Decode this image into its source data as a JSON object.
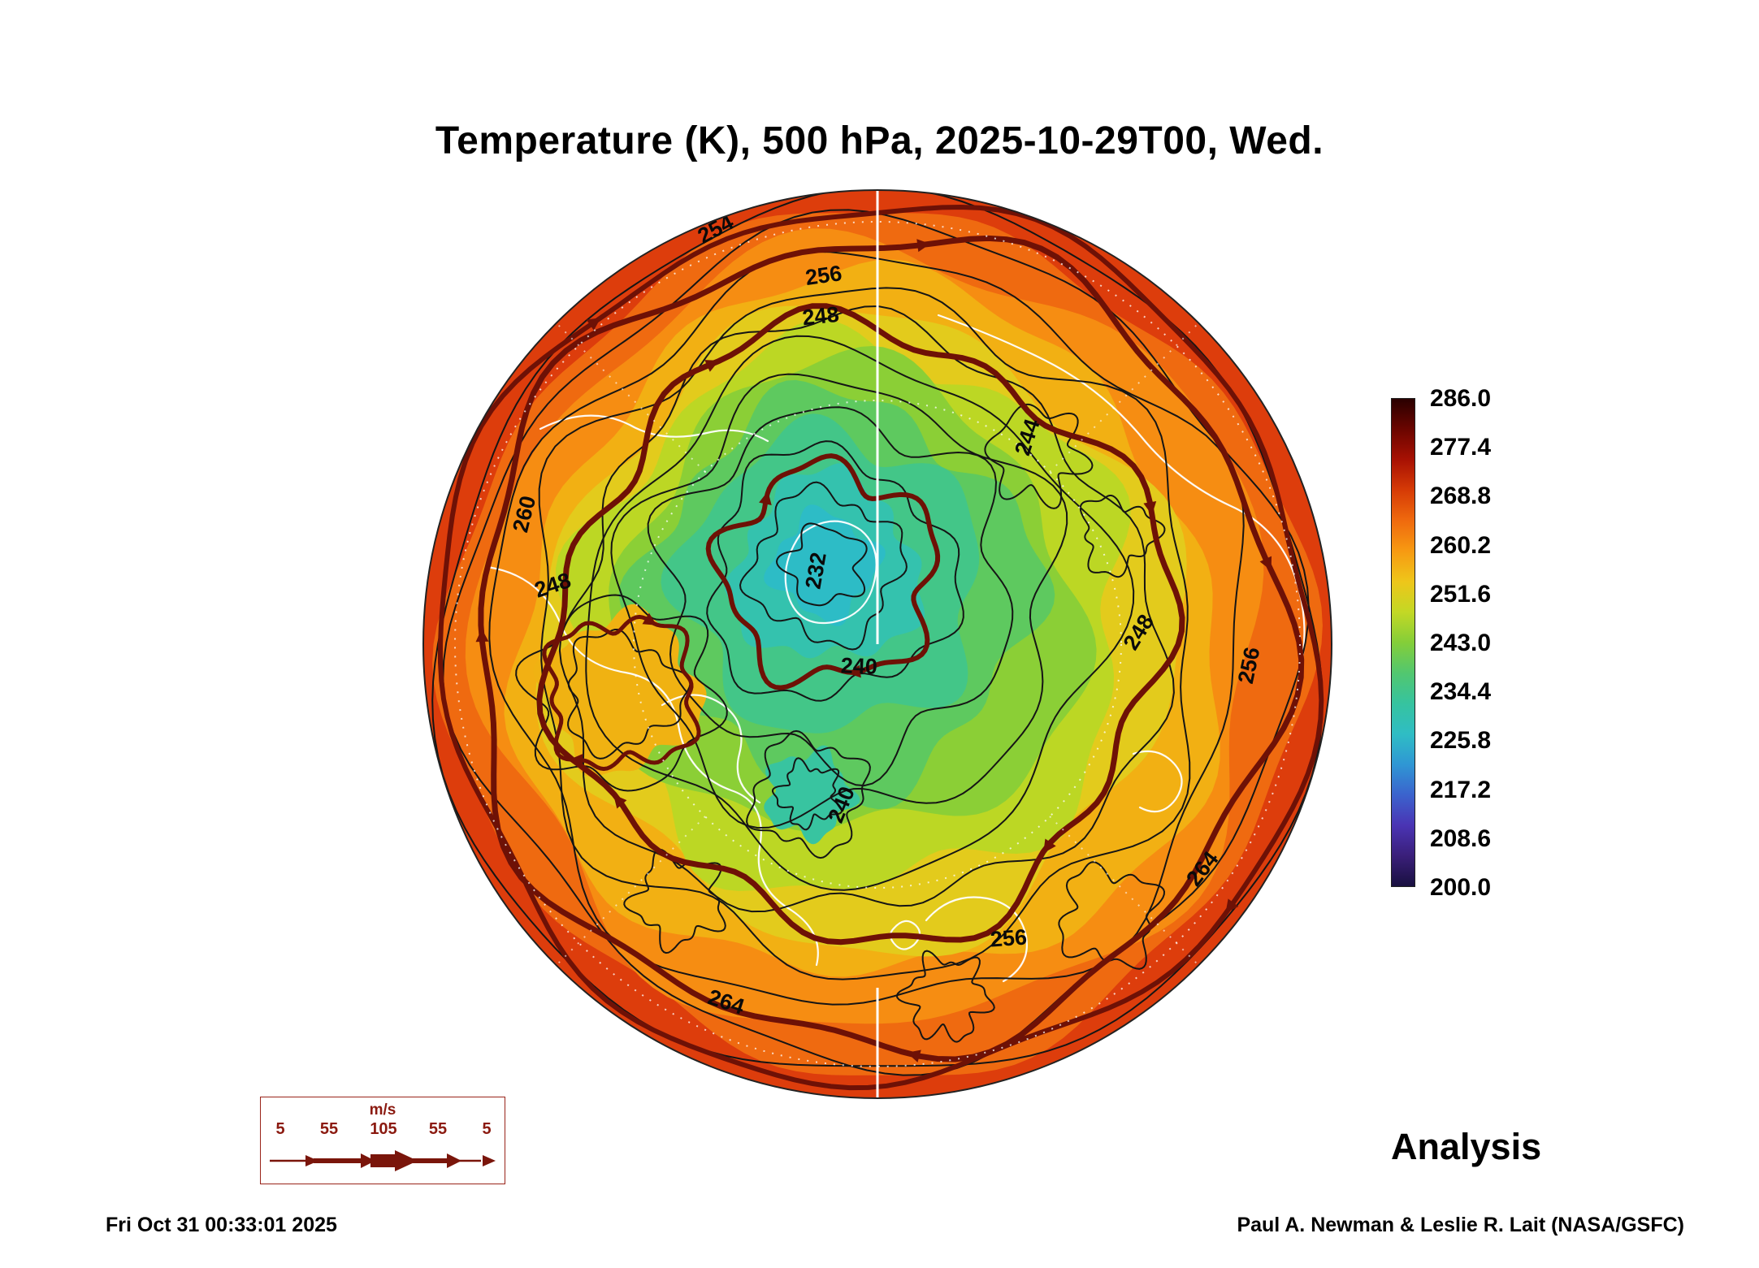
{
  "chart_data": {
    "type": "heatmap",
    "title": "Temperature (K), 500 hPa, 2025-10-29T00, Wed.",
    "variable": "Temperature",
    "units": "K",
    "pressure_level": "500 hPa",
    "valid_time": "2025-10-29T00",
    "valid_weekday": "Wed.",
    "projection": "north polar stereographic",
    "product_label": "Analysis",
    "generated_timestamp": "Fri Oct 31 00:33:01 2025",
    "credit": "Paul A. Newman & Leslie R. Lait (NASA/GSFC)",
    "colorbar": {
      "min": 200.0,
      "max": 286.0,
      "tick_labels": [
        "286.0",
        "277.4",
        "268.8",
        "260.2",
        "251.6",
        "243.0",
        "234.4",
        "225.8",
        "217.2",
        "208.6",
        "200.0"
      ],
      "colors_top_to_bottom": [
        "#2a0000",
        "#6b0500",
        "#a81103",
        "#d63b06",
        "#ef6a0e",
        "#f79a12",
        "#eec61a",
        "#c3d825",
        "#84ce39",
        "#52c76f",
        "#36c39f",
        "#2fbdc4",
        "#2f97d4",
        "#3b63cd",
        "#4a34b4",
        "#3a1f7a",
        "#191040"
      ]
    },
    "contour_labels": [
      "254",
      "256",
      "248",
      "244",
      "232",
      "240",
      "248",
      "260",
      "248",
      "256",
      "240",
      "264",
      "256",
      "264"
    ],
    "wind_legend": {
      "unit": "m/s",
      "tick_labels": [
        "5",
        "55",
        "105",
        "55",
        "5"
      ]
    },
    "map_colors": {
      "fill_bands_out_to_in": [
        "#dd3d0c",
        "#ef6a10",
        "#f68d12",
        "#f2b013",
        "#e3cb1c",
        "#bcd724",
        "#8bcf36",
        "#5ec95f",
        "#43c688",
        "#34c2ae",
        "#2dbcc6"
      ],
      "warm_ridge": "#f0b212",
      "cold_pocket": "#38c4a0",
      "thick_contour": "#6e1106",
      "thin_contour": "#151515",
      "coastline": "#ffffff",
      "graticule": "#ffffff"
    }
  }
}
